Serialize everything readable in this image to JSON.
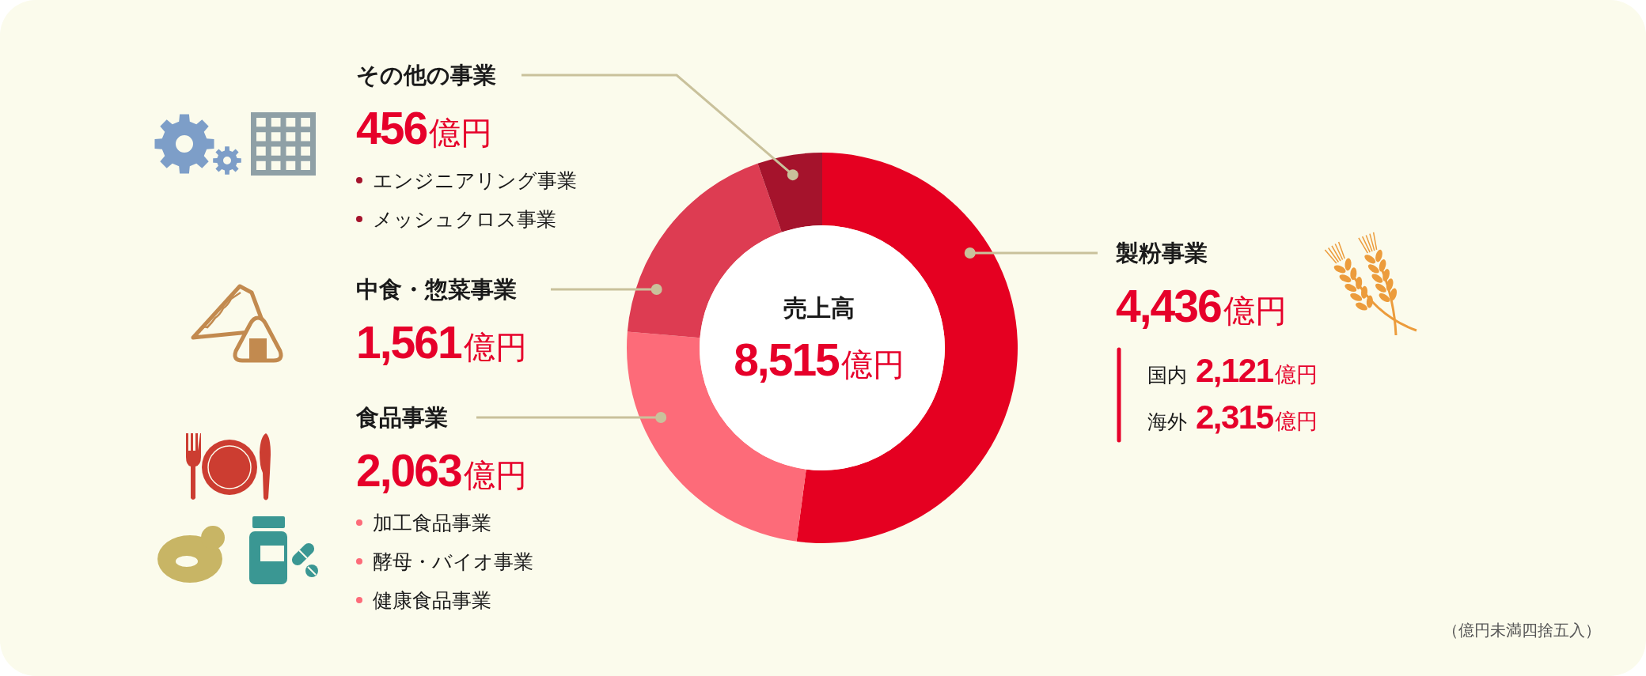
{
  "chart_data": {
    "type": "donut",
    "title": "売上高",
    "subtitle": "8,515億円",
    "categories": [
      "製粉事業",
      "食品事業",
      "中食・惣菜事業",
      "その他の事業"
    ],
    "values": [
      4436,
      2063,
      1561,
      456
    ],
    "colors": [
      "#e50021",
      "#fd6b79",
      "#dd3c52",
      "#a5132c"
    ],
    "value_labels": [
      "4,436億円",
      "2,063億円",
      "1,561億円",
      "456億円"
    ],
    "annotations": [
      "国内 2,121億円",
      "海外 2,315億円",
      "加工食品事業",
      "酵母・バイオ事業",
      "健康食品事業",
      "エンジニアリング事業",
      "メッシュクロス事業",
      "（億円未満四捨五入）"
    ]
  }
}
